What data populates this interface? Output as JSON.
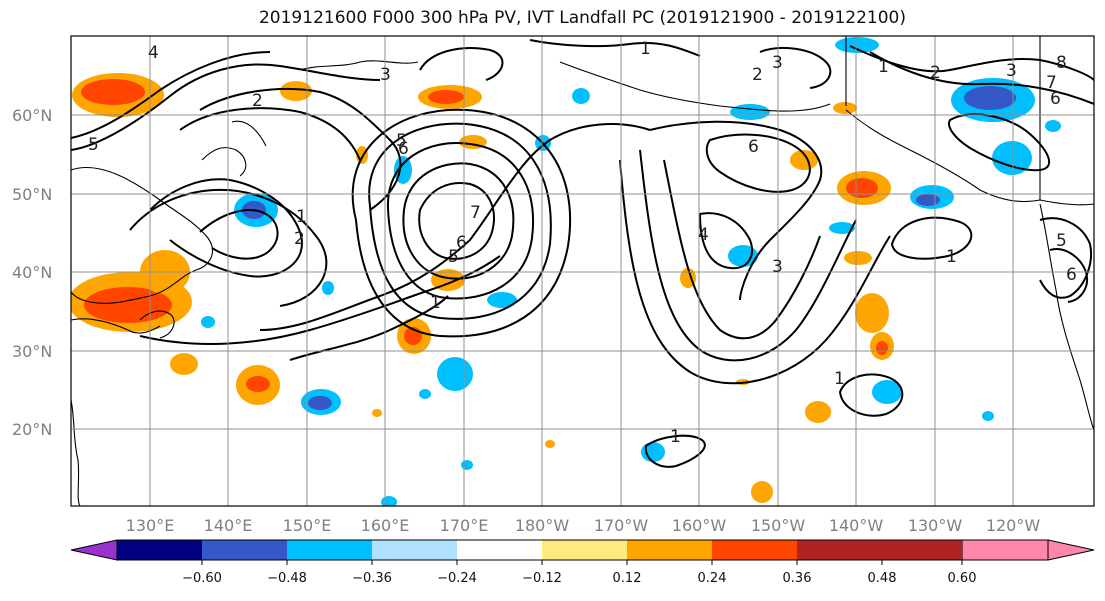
{
  "title": "2019121600 F000 300 hPa PV, IVT Landfall PC (2019121900 - 2019122100)",
  "map": {
    "lat_labels": [
      "60°N",
      "50°N",
      "40°N",
      "30°N",
      "20°N"
    ],
    "lon_labels": [
      "130°E",
      "140°E",
      "150°E",
      "160°E",
      "170°E",
      "180°W",
      "170°W",
      "160°W",
      "150°W",
      "140°W",
      "130°W",
      "120°W"
    ],
    "contour_labels": [
      "4",
      "3",
      "5",
      "2",
      "1",
      "2",
      "3",
      "1",
      "2",
      "3",
      "8",
      "7",
      "6",
      "5",
      "6",
      "1",
      "2",
      "7",
      "6",
      "5",
      "1",
      "6",
      "4",
      "3",
      "1",
      "1",
      "5",
      "6",
      "1"
    ]
  },
  "colorbar": {
    "ticks": [
      "−0.60",
      "−0.48",
      "−0.36",
      "−0.24",
      "−0.12",
      "0.12",
      "0.24",
      "0.36",
      "0.48",
      "0.60"
    ],
    "colors": [
      "#9932CC",
      "#000080",
      "#3558C8",
      "#00BFFF",
      "#B0E0FF",
      "#FFFFFF",
      "#FFEA80",
      "#FFA500",
      "#FF4500",
      "#B22222",
      "#FF88AA"
    ]
  }
}
